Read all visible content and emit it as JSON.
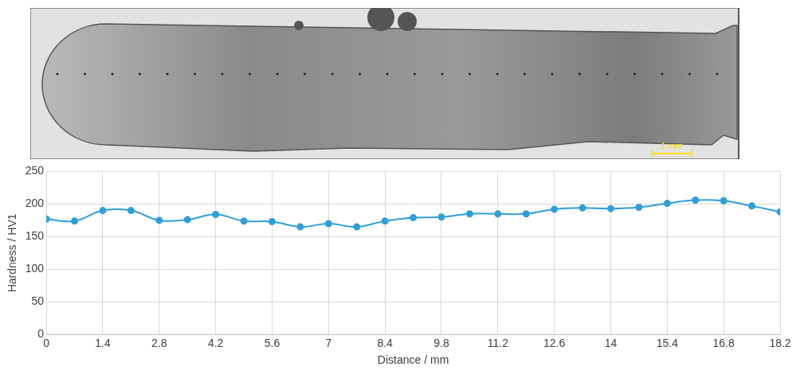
{
  "micrograph": {
    "scale_bar": "1 mm"
  },
  "chart_data": {
    "type": "line",
    "x": [
      0,
      0.7,
      1.4,
      2.1,
      2.8,
      3.5,
      4.2,
      4.9,
      5.6,
      6.3,
      7,
      7.7,
      8.4,
      9.1,
      9.8,
      10.5,
      11.2,
      11.9,
      12.6,
      13.3,
      14,
      14.7,
      15.4,
      16.1,
      16.8,
      17.5,
      18.2
    ],
    "values": [
      177,
      174,
      190,
      190,
      175,
      176,
      184,
      174,
      173,
      165,
      170,
      165,
      174,
      179,
      180,
      185,
      185,
      185,
      192,
      194,
      193,
      195,
      201,
      206,
      205,
      197,
      188
    ],
    "color": "#2e9fd8",
    "marker": "circle",
    "x_label": "Distance / mm",
    "y_label": "Hardness / HV1",
    "xlim": [
      0,
      18.2
    ],
    "xticks": [
      0,
      1.4,
      2.8,
      4.2,
      5.6,
      7,
      8.4,
      9.8,
      11.2,
      12.6,
      14,
      15.4,
      16.8,
      18.2
    ],
    "ylim": [
      0,
      250
    ],
    "yticks": [
      0,
      50,
      100,
      150,
      200,
      250
    ],
    "grid": true
  }
}
